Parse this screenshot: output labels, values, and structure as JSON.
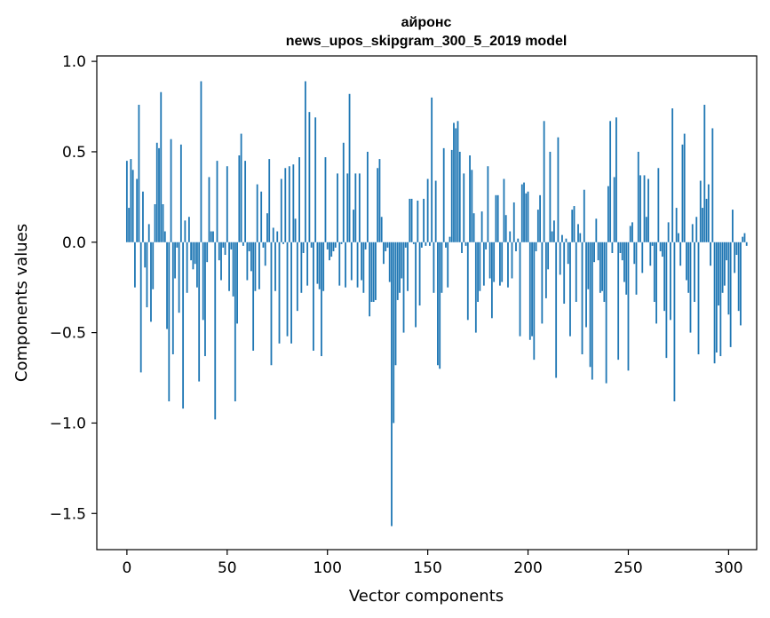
{
  "chart_data": {
    "type": "bar",
    "title_line1": "айронс",
    "title_line2": "news_upos_skipgram_300_5_2019 model",
    "xlabel": "Vector components",
    "ylabel": "Components values",
    "xlim": [
      -15,
      314
    ],
    "ylim": [
      -1.7,
      1.03
    ],
    "x_ticks": [
      0,
      50,
      100,
      150,
      200,
      250,
      300
    ],
    "x_tick_labels": [
      "0",
      "50",
      "100",
      "150",
      "200",
      "250",
      "300"
    ],
    "y_ticks": [
      1.0,
      0.5,
      0.0,
      -0.5,
      -1.0,
      -1.5
    ],
    "y_tick_labels": [
      "1.0",
      "0.5",
      "0.0",
      "−0.5",
      "−1.0",
      "−1.5"
    ],
    "bar_color": "#1f77b4",
    "grid": false,
    "values": [
      0.45,
      0.19,
      0.46,
      0.4,
      -0.25,
      0.35,
      0.76,
      -0.72,
      0.28,
      -0.14,
      -0.36,
      0.1,
      -0.44,
      -0.26,
      0.21,
      0.55,
      0.52,
      0.83,
      0.21,
      0.06,
      -0.48,
      -0.88,
      0.57,
      -0.62,
      -0.2,
      -0.03,
      -0.39,
      0.54,
      -0.92,
      0.12,
      -0.28,
      0.14,
      -0.1,
      -0.15,
      -0.12,
      -0.25,
      -0.77,
      0.89,
      -0.43,
      -0.63,
      -0.11,
      0.36,
      0.06,
      0.06,
      -0.98,
      0.45,
      -0.1,
      -0.21,
      -0.03,
      -0.07,
      0.42,
      -0.27,
      -0.04,
      -0.3,
      -0.88,
      -0.45,
      0.48,
      0.6,
      -0.02,
      0.45,
      -0.21,
      -0.05,
      -0.16,
      -0.6,
      -0.27,
      0.32,
      -0.26,
      0.28,
      -0.03,
      -0.13,
      0.16,
      0.46,
      -0.68,
      0.08,
      -0.27,
      0.06,
      -0.56,
      0.35,
      -0.01,
      0.41,
      -0.52,
      0.42,
      -0.56,
      0.43,
      0.13,
      -0.38,
      0.47,
      -0.28,
      -0.06,
      0.89,
      -0.24,
      0.72,
      -0.03,
      -0.6,
      0.69,
      -0.23,
      -0.26,
      -0.63,
      -0.27,
      0.47,
      -0.04,
      -0.1,
      -0.08,
      -0.05,
      -0.03,
      0.38,
      -0.24,
      -0.01,
      0.55,
      -0.25,
      0.38,
      0.82,
      -0.21,
      0.18,
      0.38,
      -0.25,
      0.38,
      -0.21,
      -0.28,
      -0.04,
      0.5,
      -0.41,
      -0.33,
      -0.33,
      -0.32,
      0.41,
      0.46,
      0.14,
      -0.12,
      -0.05,
      -0.03,
      -0.22,
      -1.57,
      -1.0,
      -0.68,
      -0.32,
      -0.28,
      -0.2,
      -0.5,
      -0.03,
      -0.27,
      0.24,
      0.24,
      -0.01,
      -0.47,
      0.23,
      -0.35,
      -0.03,
      0.24,
      -0.02,
      0.35,
      -0.02,
      0.8,
      -0.28,
      0.34,
      -0.68,
      -0.7,
      -0.28,
      0.52,
      -0.03,
      -0.25,
      0.03,
      0.51,
      0.66,
      0.63,
      0.67,
      0.5,
      -0.06,
      0.38,
      -0.02,
      -0.43,
      0.48,
      0.4,
      0.16,
      -0.5,
      -0.33,
      -0.27,
      0.17,
      -0.24,
      -0.04,
      0.42,
      -0.2,
      -0.42,
      -0.22,
      0.26,
      0.26,
      -0.24,
      -0.22,
      0.35,
      0.15,
      -0.25,
      0.06,
      -0.2,
      0.22,
      -0.05,
      0.02,
      -0.52,
      0.32,
      0.33,
      0.27,
      0.28,
      -0.54,
      -0.52,
      -0.65,
      -0.05,
      0.18,
      0.26,
      -0.45,
      0.67,
      -0.31,
      -0.15,
      0.5,
      0.06,
      0.12,
      -0.75,
      0.58,
      -0.18,
      0.04,
      -0.34,
      0.02,
      -0.12,
      -0.52,
      0.18,
      0.2,
      -0.33,
      0.1,
      0.05,
      -0.62,
      0.29,
      -0.47,
      -0.26,
      -0.69,
      -0.76,
      -0.11,
      0.13,
      -0.1,
      -0.28,
      -0.27,
      -0.33,
      -0.78,
      0.31,
      0.67,
      -0.06,
      0.36,
      0.69,
      -0.65,
      -0.06,
      -0.1,
      -0.22,
      -0.29,
      -0.71,
      0.09,
      0.11,
      -0.12,
      -0.29,
      0.5,
      0.37,
      -0.17,
      0.37,
      0.14,
      0.35,
      -0.13,
      -0.02,
      -0.33,
      -0.45,
      0.41,
      -0.05,
      -0.08,
      -0.38,
      -0.64,
      0.11,
      -0.43,
      0.74,
      -0.88,
      0.19,
      0.05,
      -0.13,
      0.54,
      0.6,
      -0.21,
      -0.28,
      -0.5,
      0.1,
      -0.33,
      0.14,
      -0.62,
      0.34,
      0.19,
      0.76,
      0.24,
      0.32,
      -0.13,
      0.63,
      -0.67,
      -0.61,
      -0.35,
      -0.63,
      -0.28,
      -0.24,
      -0.1,
      -0.4,
      -0.58,
      0.18,
      -0.17,
      -0.07,
      -0.38,
      -0.46,
      0.03,
      0.05,
      -0.02
    ]
  }
}
